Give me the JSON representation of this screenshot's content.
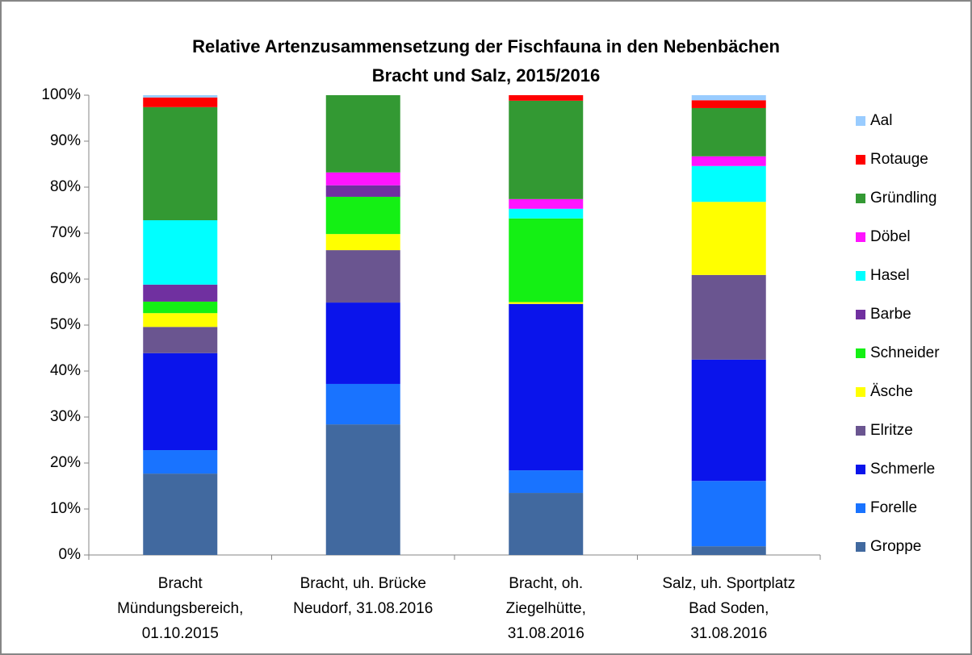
{
  "chart_data": {
    "type": "stacked_bar",
    "title": "Relative Artenzusammensetzung der Fischfauna in den Nebenbächen\nBracht und Salz, 2015/2016",
    "categories": [
      "Bracht\nMündungsbereich,\n01.10.2015",
      "Bracht, uh. Brücke\nNeudorf, 31.08.2016",
      "Bracht, oh.\nZiegelhütte,\n31.08.2016",
      "Salz, uh. Sportplatz\nBad Soden,\n31.08.2016"
    ],
    "series": [
      {
        "name": "Groppe",
        "color": "#41699f",
        "values": [
          17.7,
          28.4,
          13.5,
          1.9
        ]
      },
      {
        "name": "Forelle",
        "color": "#1973ff",
        "values": [
          5.1,
          8.8,
          4.9,
          14.2
        ]
      },
      {
        "name": "Schmerle",
        "color": "#0a14eb",
        "values": [
          21.1,
          17.7,
          36.2,
          26.4
        ]
      },
      {
        "name": "Elritze",
        "color": "#6a5590",
        "values": [
          5.7,
          11.4,
          0,
          18.4
        ]
      },
      {
        "name": "Äsche",
        "color": "#ffff00",
        "values": [
          3.0,
          3.5,
          0.4,
          15.9
        ]
      },
      {
        "name": "Schneider",
        "color": "#14f014",
        "values": [
          2.5,
          8.1,
          18.2,
          0
        ]
      },
      {
        "name": "Barbe",
        "color": "#7030a0",
        "values": [
          3.7,
          2.5,
          0,
          0
        ]
      },
      {
        "name": "Hasel",
        "color": "#00ffff",
        "values": [
          14.0,
          0,
          2.1,
          7.8
        ]
      },
      {
        "name": "Döbel",
        "color": "#ff14ff",
        "values": [
          0,
          2.8,
          2.1,
          2.1
        ]
      },
      {
        "name": "Gründling",
        "color": "#339933",
        "values": [
          24.6,
          16.8,
          21.4,
          10.5
        ]
      },
      {
        "name": "Rotauge",
        "color": "#ff0000",
        "values": [
          2.1,
          0,
          1.2,
          1.7
        ]
      },
      {
        "name": "Aal",
        "color": "#99ccff",
        "values": [
          0.5,
          0,
          0,
          1.1
        ]
      }
    ],
    "ylim": [
      0,
      100
    ],
    "yticks": [
      {
        "value": 0,
        "label": "0%"
      },
      {
        "value": 10,
        "label": "10%"
      },
      {
        "value": 20,
        "label": "20%"
      },
      {
        "value": 30,
        "label": "30%"
      },
      {
        "value": 40,
        "label": "40%"
      },
      {
        "value": 50,
        "label": "50%"
      },
      {
        "value": 60,
        "label": "60%"
      },
      {
        "value": 70,
        "label": "70%"
      },
      {
        "value": 80,
        "label": "80%"
      },
      {
        "value": 90,
        "label": "90%"
      },
      {
        "value": 100,
        "label": "100%"
      }
    ],
    "legend": "right"
  }
}
